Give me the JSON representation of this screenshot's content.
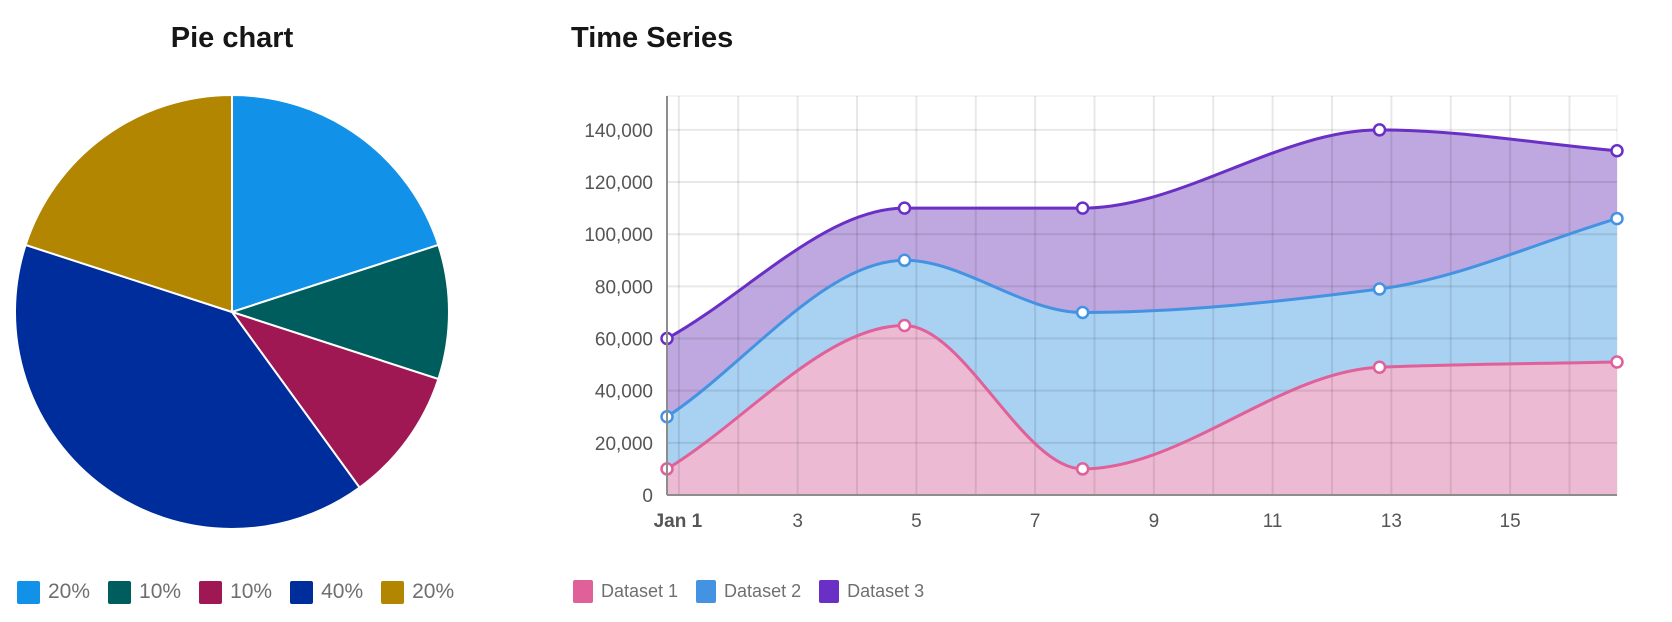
{
  "chart_data": [
    {
      "type": "pie",
      "title": "Pie chart",
      "values": [
        20,
        10,
        10,
        40,
        20
      ],
      "labels": [
        "20%",
        "10%",
        "10%",
        "40%",
        "20%"
      ],
      "colors": [
        "#1192e8",
        "#005d5d",
        "#9f1853",
        "#002d9c",
        "#b28600"
      ],
      "legend": "bottom-left"
    },
    {
      "type": "area",
      "stacked": true,
      "title": "Time Series",
      "x": [
        0.8,
        4.8,
        7.8,
        12.8,
        16.8
      ],
      "xticks": [
        1,
        3,
        5,
        7,
        9,
        11,
        13,
        15
      ],
      "xtick_labels": [
        "Jan 1",
        "3",
        "5",
        "7",
        "9",
        "11",
        "13",
        "15"
      ],
      "xlim": [
        0.8,
        16.8
      ],
      "ylim": [
        0,
        153000
      ],
      "yticks": [
        0,
        20000,
        40000,
        60000,
        80000,
        100000,
        120000,
        140000
      ],
      "ytick_labels": [
        "0",
        "20,000",
        "40,000",
        "60,000",
        "80,000",
        "100,000",
        "120,000",
        "140,000"
      ],
      "grid": true,
      "legend": "bottom-left",
      "series": [
        {
          "name": "Dataset 1",
          "color": "#e0609a",
          "values": [
            10000,
            65000,
            10000,
            49000,
            51000
          ]
        },
        {
          "name": "Dataset 2",
          "color": "#4493e2",
          "values": [
            20000,
            25000,
            60000,
            30000,
            55000
          ]
        },
        {
          "name": "Dataset 3",
          "color": "#6a2fc4",
          "values": [
            30000,
            20000,
            40000,
            61000,
            26000
          ]
        }
      ]
    }
  ]
}
